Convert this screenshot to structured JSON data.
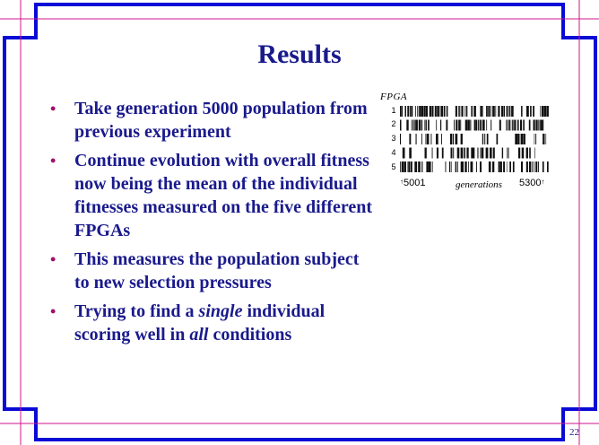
{
  "slide": {
    "title": "Results",
    "page_number": "22",
    "bullets": [
      [
        "Take generation 5000 population from previous experiment"
      ],
      [
        "Continue evolution with overall fitness now being the mean of the individual fitnesses measured on the five different FPGAs"
      ],
      [
        "This measures the population subject to new selection pressures"
      ],
      [
        "Trying to find a ",
        {
          "em": "single"
        },
        " individual scoring well in ",
        {
          "em": "all"
        },
        " conditions"
      ]
    ]
  },
  "figure": {
    "title": "FPGA",
    "row_labels": [
      "1",
      "2",
      "3",
      "4",
      "5"
    ],
    "x_start": "5001",
    "x_label": "generations",
    "x_end": "5300",
    "colors": {
      "bars": "#111111"
    }
  },
  "colors": {
    "frame_blue": "#0a0ad6",
    "inner_line": "#d0148c",
    "text": "#1a1a8c",
    "bullet": "#a0106b"
  }
}
